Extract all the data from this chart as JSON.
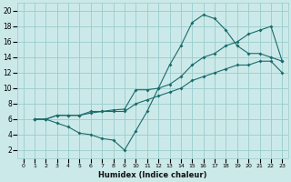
{
  "xlabel": "Humidex (Indice chaleur)",
  "bg_color": "#cce9e9",
  "grid_color": "#99cccc",
  "line_color": "#1a6b6b",
  "xlim": [
    -0.5,
    23.5
  ],
  "ylim": [
    1,
    21
  ],
  "xticks": [
    0,
    1,
    2,
    3,
    4,
    5,
    6,
    7,
    8,
    9,
    10,
    11,
    12,
    13,
    14,
    15,
    16,
    17,
    18,
    19,
    20,
    21,
    22,
    23
  ],
  "yticks": [
    2,
    4,
    6,
    8,
    10,
    12,
    14,
    16,
    18,
    20
  ],
  "line1_x": [
    1,
    2,
    3,
    4,
    5,
    6,
    7,
    8,
    9,
    10,
    11,
    12,
    13,
    14,
    15,
    16,
    17,
    18,
    19,
    20,
    21,
    22,
    23
  ],
  "line1_y": [
    6,
    6,
    5.5,
    5,
    4.2,
    4,
    3.5,
    3.3,
    2.0,
    4.5,
    7.0,
    10.0,
    13.0,
    15.5,
    18.5,
    19.5,
    19.0,
    17.5,
    15.5,
    14.5,
    14.5,
    14.0,
    13.5
  ],
  "line2_x": [
    1,
    2,
    3,
    4,
    5,
    6,
    7,
    8,
    9,
    10,
    11,
    12,
    13,
    14,
    15,
    16,
    17,
    18,
    19,
    20,
    21,
    22,
    23
  ],
  "line2_y": [
    6,
    6,
    6.5,
    6.5,
    6.5,
    7.0,
    7.0,
    7.2,
    7.3,
    9.8,
    9.8,
    10.0,
    10.5,
    11.5,
    13.0,
    14.0,
    14.5,
    15.5,
    16.0,
    17.0,
    17.5,
    18.0,
    13.5
  ],
  "line3_x": [
    1,
    2,
    3,
    4,
    5,
    6,
    7,
    8,
    9,
    10,
    11,
    12,
    13,
    14,
    15,
    16,
    17,
    18,
    19,
    20,
    21,
    22,
    23
  ],
  "line3_y": [
    6,
    6,
    6.5,
    6.5,
    6.5,
    6.8,
    7.0,
    7.0,
    7.0,
    8.0,
    8.5,
    9.0,
    9.5,
    10.0,
    11.0,
    11.5,
    12.0,
    12.5,
    13.0,
    13.0,
    13.5,
    13.5,
    12.0
  ]
}
